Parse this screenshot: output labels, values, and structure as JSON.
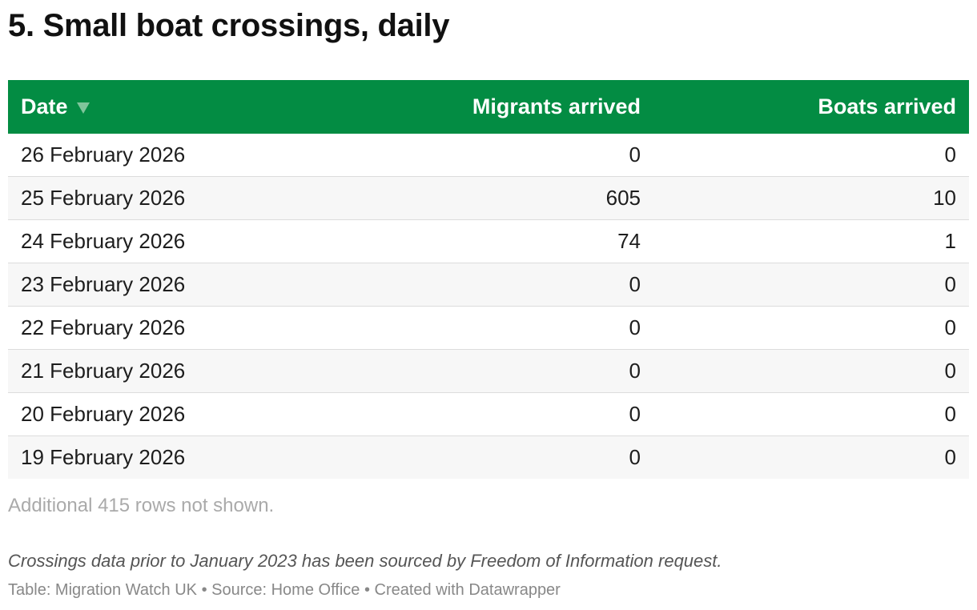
{
  "title": "5. Small boat crossings, daily",
  "table": {
    "columns": [
      "Date",
      "Migrants arrived",
      "Boats arrived"
    ],
    "rows": [
      [
        "26 February 2026",
        0,
        0
      ],
      [
        "25 February 2026",
        605,
        10
      ],
      [
        "24 February 2026",
        74,
        1
      ],
      [
        "23 February 2026",
        0,
        0
      ],
      [
        "22 February 2026",
        0,
        0
      ],
      [
        "21 February 2026",
        0,
        0
      ],
      [
        "20 February 2026",
        0,
        0
      ],
      [
        "19 February 2026",
        0,
        0
      ]
    ]
  },
  "rows_note": "Additional 415 rows not shown.",
  "footnote": "Crossings data prior to January 2023 has been sourced by Freedom of Information request.",
  "byline": "Table: Migration Watch UK • Source: Home Office • Created with Datawrapper"
}
